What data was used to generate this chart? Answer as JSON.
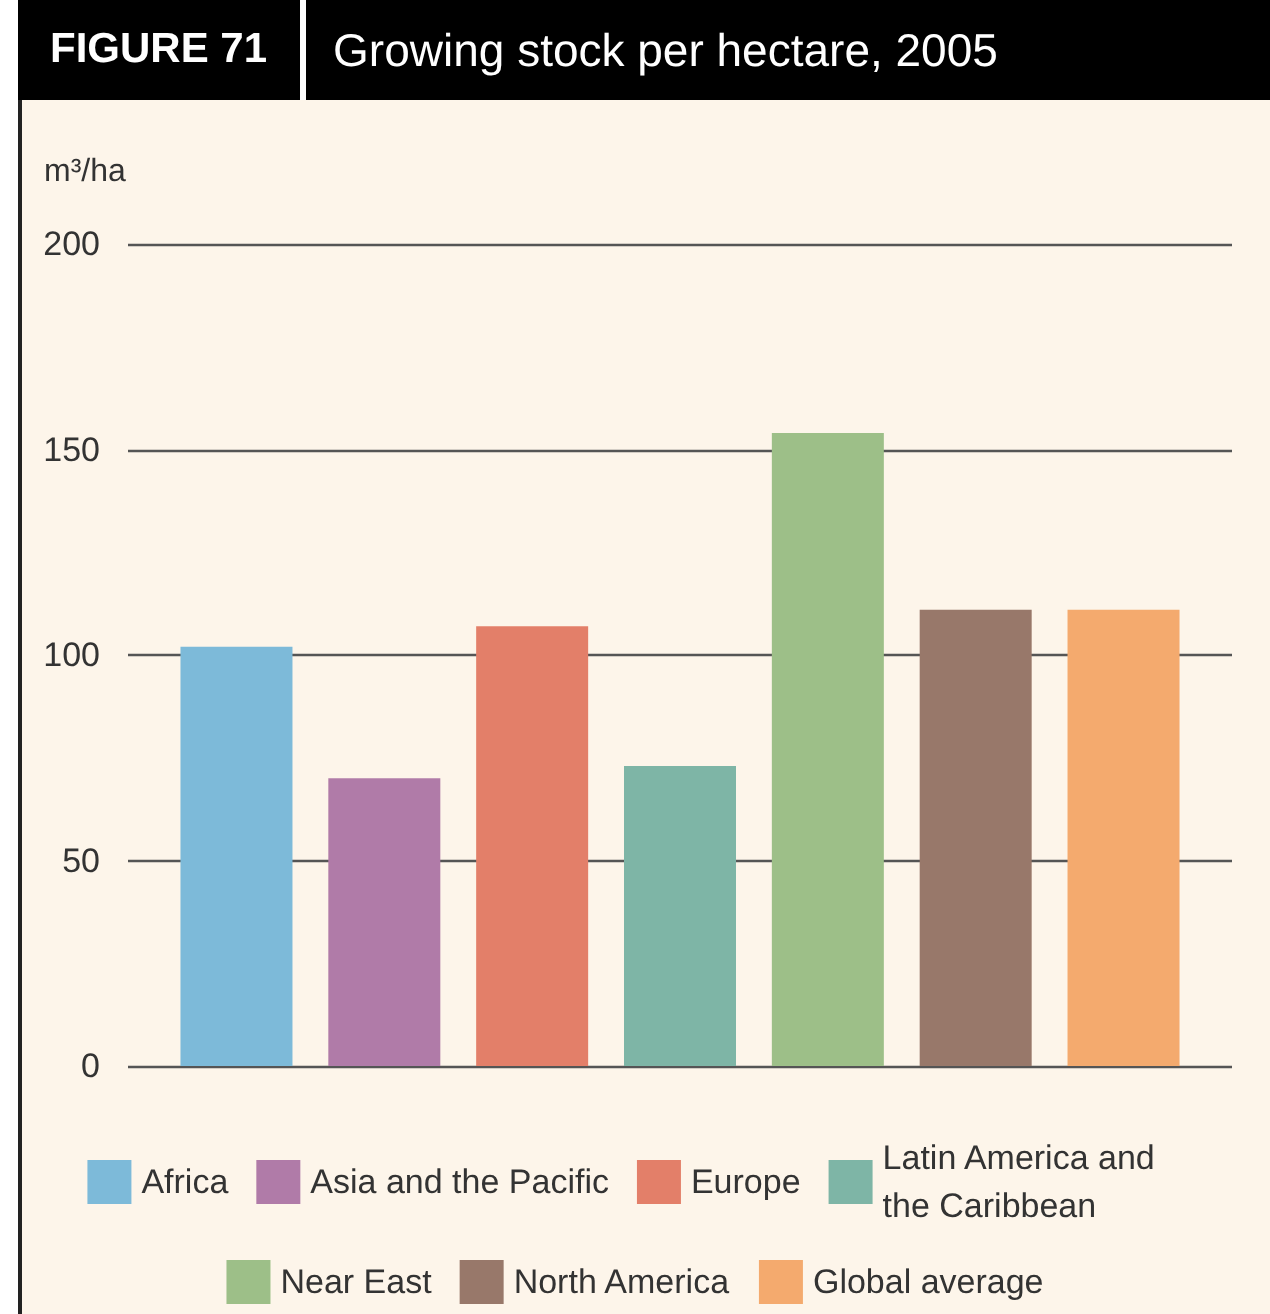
{
  "chart_data": {
    "type": "bar",
    "title": "FIGURE 71",
    "subtitle": "Growing stock per hectare, 2005",
    "ylabel": "m³/ha",
    "categories": [
      null
    ],
    "series": [
      {
        "name": "Africa",
        "color": "#7dbad9",
        "values": [
          102
        ]
      },
      {
        "name": "Asia and the Pacific",
        "color": "#b07ba8",
        "values": [
          70
        ]
      },
      {
        "name": "Europe",
        "color": "#e37f69",
        "values": [
          107
        ]
      },
      {
        "name": "Latin America and the Caribbean",
        "color": "#7eb5a6",
        "values": [
          73
        ]
      },
      {
        "name": "Near East",
        "color": "#9dbf88",
        "values": [
          154
        ]
      },
      {
        "name": "North America",
        "color": "#98786a",
        "values": [
          111
        ]
      },
      {
        "name": "Global average",
        "color": "#f4aa6e",
        "values": [
          111
        ]
      }
    ],
    "ylim": [
      0,
      200
    ],
    "yticks": [
      0,
      50,
      100,
      150,
      200
    ],
    "grid": "y",
    "legend": "bottom",
    "tick_labels": "y"
  }
}
